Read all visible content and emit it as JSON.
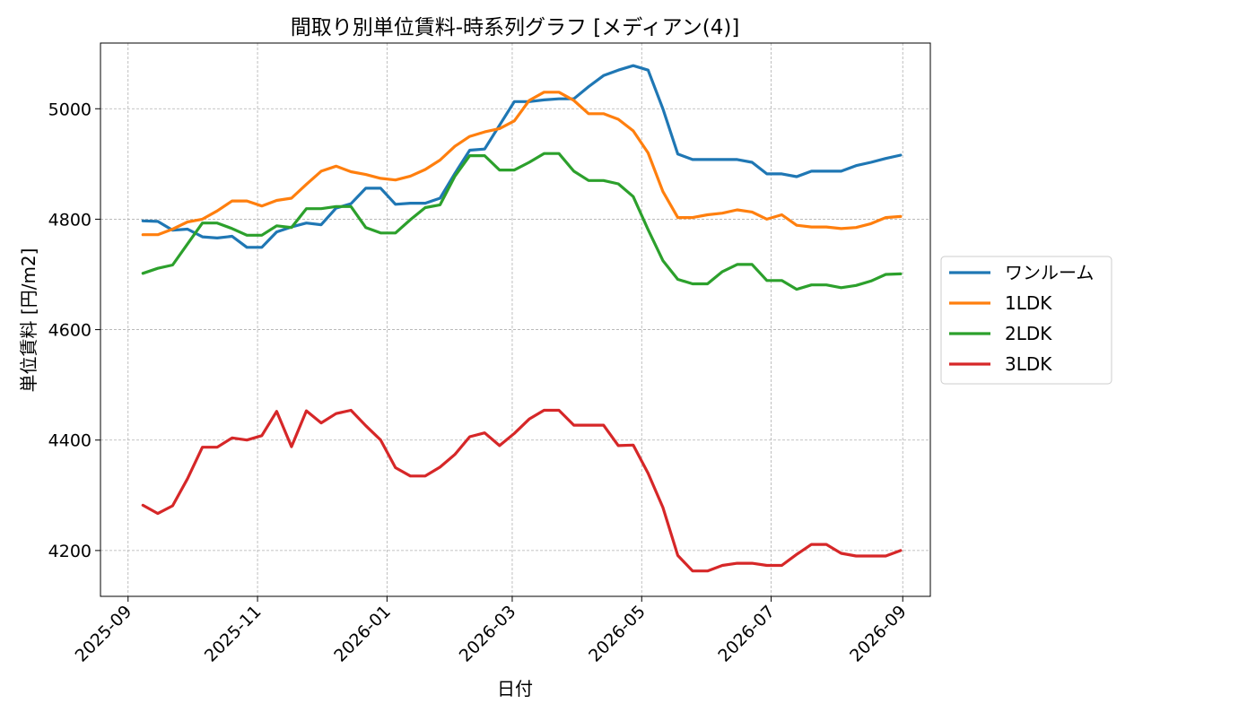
{
  "chart_data": {
    "type": "line",
    "title": "間取り別単位賃料-時系列グラフ [メディアン(4)]",
    "xlabel": "日付",
    "ylabel": "単位賃料 [円/m2]",
    "xlim": [
      "2025-08-19",
      "2026-09-14"
    ],
    "ylim": [
      4117,
      5119
    ],
    "grid": true,
    "legend_position": "right-outside",
    "x_ticks": [
      "2025-09-01",
      "2025-11-01",
      "2026-01-01",
      "2026-03-01",
      "2026-05-01",
      "2026-07-01",
      "2026-09-01"
    ],
    "x_tick_labels": [
      "2025-09",
      "2025-11",
      "2026-01",
      "2026-03",
      "2026-05",
      "2026-07",
      "2026-09"
    ],
    "y_ticks": [
      4200,
      4400,
      4600,
      4800,
      5000
    ],
    "y_tick_labels": [
      "4200",
      "4400",
      "4600",
      "4800",
      "5000"
    ],
    "x": [
      "2025-09-08",
      "2025-09-15",
      "2025-09-22",
      "2025-09-29",
      "2025-10-06",
      "2025-10-13",
      "2025-10-20",
      "2025-10-27",
      "2025-11-03",
      "2025-11-10",
      "2025-11-17",
      "2025-11-24",
      "2025-12-01",
      "2025-12-08",
      "2025-12-15",
      "2025-12-22",
      "2025-12-29",
      "2026-01-05",
      "2026-01-12",
      "2026-01-19",
      "2026-01-26",
      "2026-02-02",
      "2026-02-09",
      "2026-02-16",
      "2026-02-23",
      "2026-03-02",
      "2026-03-09",
      "2026-03-16",
      "2026-03-23",
      "2026-03-30",
      "2026-04-06",
      "2026-04-13",
      "2026-04-20",
      "2026-04-27",
      "2026-05-04",
      "2026-05-11",
      "2026-05-18",
      "2026-05-25",
      "2026-06-01",
      "2026-06-08",
      "2026-06-15",
      "2026-06-22",
      "2026-06-29",
      "2026-07-06",
      "2026-07-13",
      "2026-07-20",
      "2026-07-27",
      "2026-08-03",
      "2026-08-10",
      "2026-08-17",
      "2026-08-24",
      "2026-08-31"
    ],
    "series": [
      {
        "name": "ワンルーム",
        "color": "#1f77b4",
        "values": [
          4797,
          4796,
          4780,
          4782,
          4768,
          4766,
          4769,
          4749,
          4749,
          4777,
          4786,
          4793,
          4790,
          4820,
          4828,
          4856,
          4856,
          4827,
          4829,
          4829,
          4838,
          4883,
          4925,
          4927,
          4970,
          5013,
          5013,
          5016,
          5018,
          5018,
          5040,
          5060,
          5070,
          5078,
          5070,
          5000,
          4918,
          4908,
          4908,
          4908,
          4908,
          4903,
          4882,
          4882,
          4877,
          4887,
          4887,
          4887,
          4897,
          4903,
          4910,
          4916
        ]
      },
      {
        "name": "1LDK",
        "color": "#ff7f0e",
        "values": [
          4772,
          4772,
          4782,
          4795,
          4800,
          4815,
          4833,
          4833,
          4824,
          4834,
          4838,
          4863,
          4887,
          4896,
          4886,
          4881,
          4874,
          4871,
          4878,
          4890,
          4907,
          4932,
          4950,
          4958,
          4964,
          4978,
          5015,
          5030,
          5030,
          5015,
          4991,
          4991,
          4981,
          4960,
          4920,
          4850,
          4803,
          4803,
          4808,
          4811,
          4817,
          4813,
          4800,
          4808,
          4789,
          4786,
          4786,
          4783,
          4785,
          4792,
          4803,
          4805
        ]
      },
      {
        "name": "2LDK",
        "color": "#2ca02c",
        "values": [
          4702,
          4711,
          4717,
          4755,
          4793,
          4793,
          4783,
          4771,
          4771,
          4788,
          4785,
          4819,
          4819,
          4823,
          4823,
          4785,
          4775,
          4775,
          4799,
          4821,
          4826,
          4878,
          4915,
          4915,
          4889,
          4889,
          4903,
          4919,
          4919,
          4887,
          4870,
          4870,
          4864,
          4841,
          4781,
          4725,
          4691,
          4683,
          4683,
          4705,
          4718,
          4718,
          4689,
          4689,
          4673,
          4681,
          4681,
          4676,
          4680,
          4688,
          4700,
          4701
        ]
      },
      {
        "name": "3LDK",
        "color": "#d62728",
        "values": [
          4282,
          4267,
          4281,
          4330,
          4387,
          4387,
          4404,
          4400,
          4408,
          4452,
          4388,
          4453,
          4431,
          4448,
          4454,
          4426,
          4400,
          4350,
          4335,
          4335,
          4351,
          4374,
          4406,
          4413,
          4390,
          4412,
          4438,
          4454,
          4454,
          4427,
          4427,
          4427,
          4390,
          4391,
          4340,
          4278,
          4191,
          4163,
          4163,
          4173,
          4177,
          4177,
          4173,
          4173,
          4193,
          4211,
          4211,
          4195,
          4190,
          4190,
          4190,
          4200
        ]
      }
    ]
  }
}
